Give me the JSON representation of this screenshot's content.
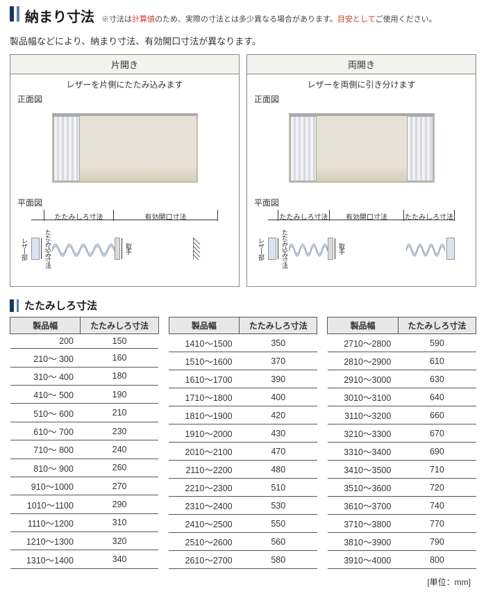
{
  "colors": {
    "primary_dark": "#123a6b",
    "primary_light": "#5b7fa8",
    "red": "#d43c2a",
    "header_bg": "#e8e8e8",
    "border": "#555555",
    "room_bg": "#e8e2d6",
    "bellows_fill": "#c8d4e4",
    "bellows_stroke": "#8899aa"
  },
  "main_title": "納まり寸法",
  "title_note_prefix": "※寸法は",
  "title_note_red1": "計算値",
  "title_note_mid": "のため、実際の寸法とは多少異なる場合があります。",
  "title_note_red2": "目安として",
  "title_note_suffix": "ご使用ください。",
  "subtitle": "製品幅などにより、納まり寸法、有効開口寸法が異なります。",
  "diagram": {
    "left": {
      "header": "片開き",
      "desc": "レザーを片側にたたみ込みます",
      "front_label": "正面図",
      "plan_label": "平面図",
      "dim_fold": "たたみしろ寸法",
      "dim_open": "有効開口寸法",
      "v_leather": "レザー部",
      "v_fold": "たたみ込み寸法",
      "v_handle": "取手"
    },
    "right": {
      "header": "両開き",
      "desc": "レザーを両側に引き分けます",
      "front_label": "正面図",
      "plan_label": "平面図",
      "dim_fold_l": "たたみしろ寸法",
      "dim_open": "有効開口寸法",
      "dim_fold_r": "たたみしろ寸法",
      "v_leather": "レザー部",
      "v_fold": "たたみ込み寸法",
      "v_handle": "取手"
    }
  },
  "section2_title": "たたみしろ寸法",
  "table_headers": {
    "width": "製品幅",
    "fold": "たたみしろ寸法"
  },
  "table1": [
    [
      "200",
      "150"
    ],
    [
      "210～  300",
      "160"
    ],
    [
      "310～  400",
      "180"
    ],
    [
      "410～  500",
      "190"
    ],
    [
      "510～  600",
      "210"
    ],
    [
      "610～  700",
      "230"
    ],
    [
      "710～  800",
      "240"
    ],
    [
      "810～  900",
      "260"
    ],
    [
      "910～1000",
      "270"
    ],
    [
      "1010～1100",
      "290"
    ],
    [
      "1110～1200",
      "310"
    ],
    [
      "1210～1300",
      "320"
    ],
    [
      "1310～1400",
      "340"
    ]
  ],
  "table2": [
    [
      "1410～1500",
      "350"
    ],
    [
      "1510～1600",
      "370"
    ],
    [
      "1610～1700",
      "390"
    ],
    [
      "1710～1800",
      "400"
    ],
    [
      "1810～1900",
      "420"
    ],
    [
      "1910～2000",
      "430"
    ],
    [
      "2010～2100",
      "470"
    ],
    [
      "2110～2200",
      "480"
    ],
    [
      "2210～2300",
      "510"
    ],
    [
      "2310～2400",
      "530"
    ],
    [
      "2410～2500",
      "550"
    ],
    [
      "2510～2600",
      "560"
    ],
    [
      "2610～2700",
      "580"
    ]
  ],
  "table3": [
    [
      "2710～2800",
      "590"
    ],
    [
      "2810～2900",
      "610"
    ],
    [
      "2910～3000",
      "630"
    ],
    [
      "3010～3100",
      "640"
    ],
    [
      "3110～3200",
      "660"
    ],
    [
      "3210～3300",
      "670"
    ],
    [
      "3310～3400",
      "690"
    ],
    [
      "3410～3500",
      "710"
    ],
    [
      "3510～3600",
      "720"
    ],
    [
      "3610～3700",
      "740"
    ],
    [
      "3710～3800",
      "770"
    ],
    [
      "3810～3900",
      "790"
    ],
    [
      "3910～4000",
      "800"
    ]
  ],
  "unit_note": "[単位：mm]"
}
